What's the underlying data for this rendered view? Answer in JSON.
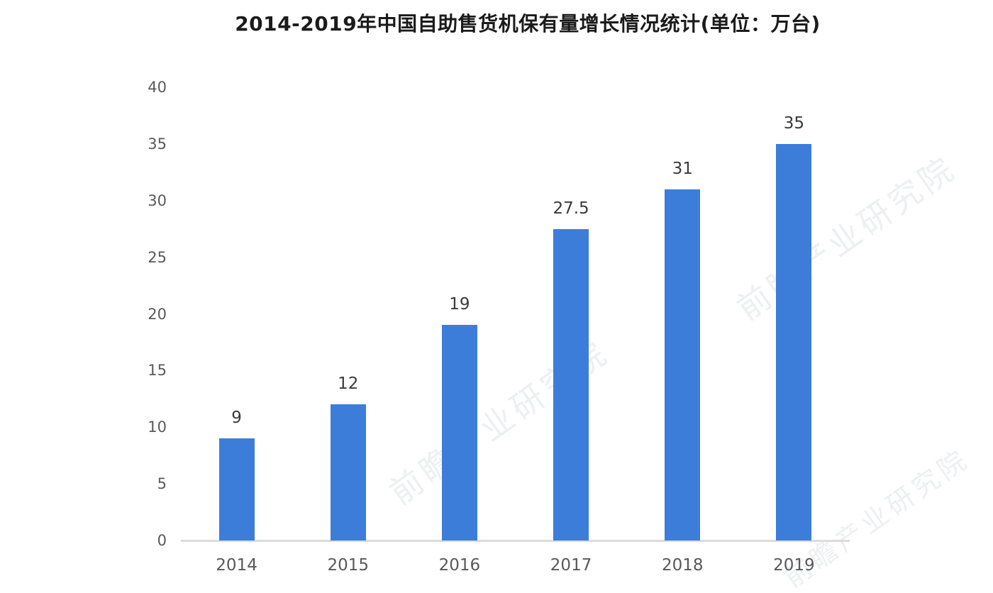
{
  "chart_data": {
    "type": "bar",
    "title": "2014-2019年中国自助售货机保有量增长情况统计(单位：万台)",
    "categories": [
      "2014",
      "2015",
      "2016",
      "2017",
      "2018",
      "2019"
    ],
    "values": [
      9,
      12,
      19,
      27.5,
      31,
      35
    ],
    "data_labels": [
      "9",
      "12",
      "19",
      "27.5",
      "31",
      "35"
    ],
    "xlabel": "",
    "ylabel": "",
    "unit": "万台",
    "ylim": [
      0,
      40
    ],
    "yticks": [
      0,
      5,
      10,
      15,
      20,
      25,
      30,
      35,
      40
    ],
    "grid": false,
    "legend": "none",
    "bar_color": "#3c7dda"
  },
  "style": {
    "bar_color": "#3c7dda",
    "axis_line_color": "#dcdcdc",
    "title_color": "#1b1b1b",
    "tick_color": "#595959",
    "value_label_color": "#3a3a3a",
    "watermark_color": "rgba(174,182,196,0.22)"
  },
  "watermark": {
    "text": "前瞻产业研究院"
  }
}
